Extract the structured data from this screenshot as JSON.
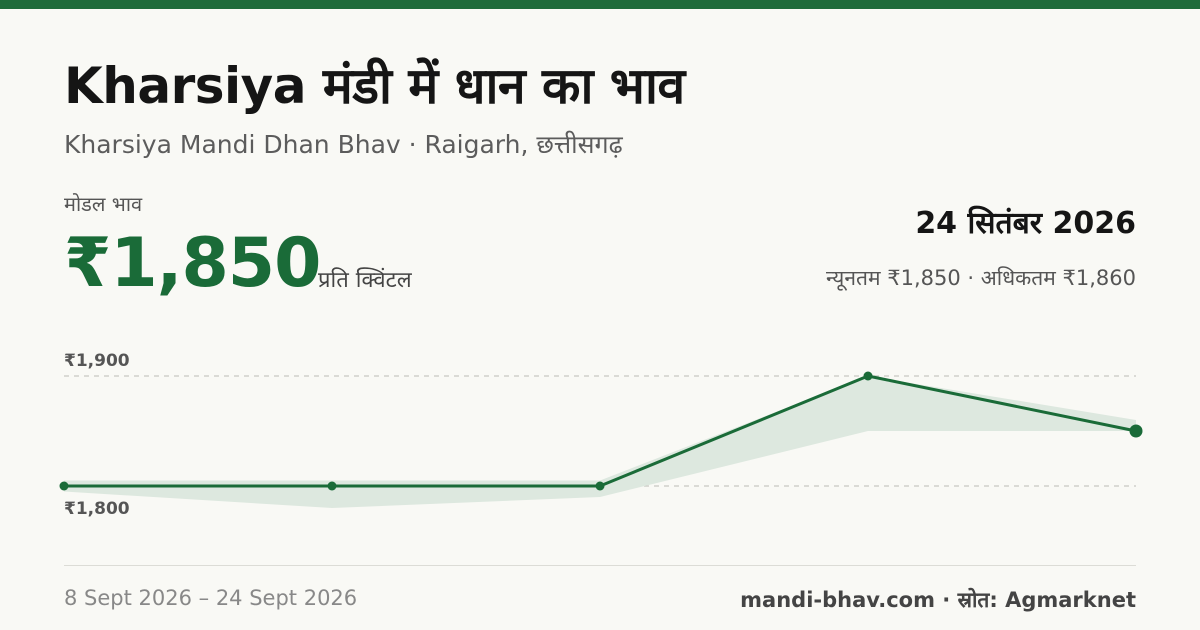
{
  "header": {
    "title": "Kharsiya मंडी में धान का भाव",
    "subtitle": "Kharsiya Mandi Dhan Bhav · Raigarh, छत्तीसगढ़"
  },
  "price": {
    "modal_label": "मोडल भाव",
    "modal_value": "₹1,850",
    "unit": "प्रति क्विंटल"
  },
  "summary": {
    "date": "24 सितंबर 2026",
    "min_label": "न्यूनतम",
    "min_value": "₹1,850",
    "separator": "·",
    "max_label": "अधिकतम",
    "max_value": "₹1,860"
  },
  "footer": {
    "date_range": "8 Sept 2026 – 24 Sept 2026",
    "source": "mandi-bhav.com · स्रोत: Agmarknet"
  },
  "colors": {
    "accent": "#1a6b38",
    "band": "#dde8df",
    "grid": "#c8c8c2"
  },
  "chart_data": {
    "type": "line",
    "x_count": 5,
    "y_ticks": [
      1800,
      1900
    ],
    "y_tick_labels": [
      "₹1,800",
      "₹1,900"
    ],
    "series": [
      {
        "values": [
          1800,
          1800,
          1800,
          1900,
          1850
        ]
      }
    ],
    "band": {
      "min": [
        1795,
        1780,
        1790,
        1850,
        1850
      ],
      "max": [
        1805,
        1805,
        1805,
        1900,
        1860
      ]
    },
    "grid": true
  }
}
